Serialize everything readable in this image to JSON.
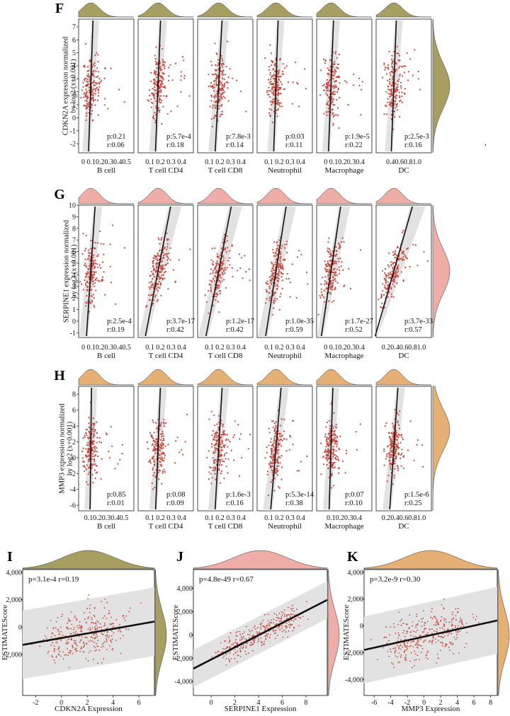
{
  "colors": {
    "F": "#8a7d2e",
    "G": "#e8928a",
    "H": "#dc9548",
    "point": "#c4463a",
    "band": "#e2e2e2",
    "line": "#111111"
  },
  "chart_data": [
    {
      "type": "scatter",
      "panel": "F",
      "ylabel_lines": [
        "CDKN2A expression normalized",
        "by log2 (x+0.001)"
      ],
      "ylim": [
        -2.7,
        7.6
      ],
      "yticks": [
        -2,
        -1,
        0,
        1,
        2,
        3,
        4,
        5,
        6,
        7
      ],
      "extra_mark": ",",
      "cells": [
        {
          "name": "B cell",
          "xticks": "0  0.10.20.30.40.5",
          "p": "p:0.21",
          "r": "r:0.06",
          "slope": 0.025
        },
        {
          "name": "T cell CD4",
          "xticks": "0.1  0.2 0.3 0.4",
          "p": "p:5.7e-4",
          "r": "r:0.18",
          "slope": 0.03
        },
        {
          "name": "T cell CD8",
          "xticks": "0.1  0.2  0.3  0.4",
          "p": "p:7.8e-3",
          "r": "r:0.14",
          "slope": 0.045
        },
        {
          "name": "Neutrophil",
          "xticks": "0.1  0.2  0.3  0.4",
          "p": "p:0.03",
          "r": "r:0.11",
          "slope": 0.025
        },
        {
          "name": "Macrophage",
          "xticks": "0 0.10.20.30.4",
          "p": "p:1.9e-5",
          "r": "r:0.22",
          "slope": 0.03
        },
        {
          "name": "DC",
          "xticks": "0.40.60.81.0",
          "p": "p:2.5e-3",
          "r": "r:0.16",
          "slope": 0.03
        }
      ]
    },
    {
      "type": "scatter",
      "panel": "G",
      "ylabel_lines": [
        "SERPINE1 expression normalized",
        "by log2 (x+0.001)"
      ],
      "ylim": [
        -1.4,
        10.0
      ],
      "yticks": [
        -1,
        0,
        1,
        2,
        3,
        4,
        5,
        6,
        7,
        8,
        9,
        10
      ],
      "cells": [
        {
          "name": "B cell",
          "xticks": "0  0.10.20.30.40.5",
          "p": "p:2.5e-4",
          "r": "r:0.19",
          "slope": 0.06
        },
        {
          "name": "T cell CD4",
          "xticks": "0.1  0.2  0.3  0.4",
          "p": "p:3.7e-17",
          "r": "r:0.42",
          "slope": 0.2
        },
        {
          "name": "T cell CD8",
          "xticks": "0.1  0.2  0.3  0.4",
          "p": "p:1.2e-17",
          "r": "r:0.42",
          "slope": 0.2
        },
        {
          "name": "Neutrophil",
          "xticks": "0.1  0.2  0.3  0.4",
          "p": "p:1.0e-35",
          "r": "r:0.59",
          "slope": 0.16
        },
        {
          "name": "Macrophage",
          "xticks": "0  0.10.20.30.4",
          "p": "p:1.7e-27",
          "r": "r:0.52",
          "slope": 0.15
        },
        {
          "name": "DC",
          "xticks": "0.20.40.60.81.0",
          "p": "p:3.7e-33",
          "r": "r:0.57",
          "slope": 0.3
        }
      ]
    },
    {
      "type": "scatter",
      "panel": "H",
      "ylabel_lines": [
        "MMP3 expression normalized",
        "by log2 (x+0.001)"
      ],
      "ylim": [
        -6.7,
        9.0
      ],
      "yticks": [
        -6,
        -4,
        -2,
        0,
        2,
        4,
        6,
        8
      ],
      "cells": [
        {
          "name": "B cell",
          "xticks": "0.10.20.30.40.5",
          "p": "p:0.85",
          "r": "r:0.01",
          "slope": 0.0
        },
        {
          "name": "T cell CD4",
          "xticks": "0.1  0.2  0.3  0.4",
          "p": "p:0.08",
          "r": "r:0.09",
          "slope": 0.03
        },
        {
          "name": "T cell CD8",
          "xticks": "0.1  0.2  0.3  0.4",
          "p": "p:1.6e-3",
          "r": "r:0.16",
          "slope": 0.05
        },
        {
          "name": "Neutrophil",
          "xticks": "0.1  0.2  0.3  0.4",
          "p": "p:5.3e-14",
          "r": "r:0.38",
          "slope": 0.08
        },
        {
          "name": "Macrophage",
          "xticks": "0.10.20.30.4",
          "p": "p:0.07",
          "r": "r:0.10",
          "slope": 0.02
        },
        {
          "name": "DC",
          "xticks": "0.20.40.60.81.0",
          "p": "p:1.5e-6",
          "r": "r:0.25",
          "slope": 0.06
        }
      ]
    },
    {
      "type": "scatter",
      "panel": "I",
      "xlabel": "CDKN2A Expression",
      "ylabel": "ESTIMATEScore",
      "xlim": [
        -3,
        7.2
      ],
      "xticks": [
        -2,
        0,
        2,
        4,
        6
      ],
      "ylim": [
        -5000,
        4200
      ],
      "yticks": [
        -2000,
        0,
        2000,
        4000
      ],
      "ytick_labels": [
        "-2,000",
        "0",
        "2,000",
        "4,000"
      ],
      "annotation": "p=3.1e-4 r=0.19",
      "fit": {
        "y_at_xmin": -1300,
        "y_at_xmax": 400
      },
      "band": 2500,
      "color_key": "F"
    },
    {
      "type": "scatter",
      "panel": "J",
      "xlabel": "SERPINE1 Expression",
      "ylabel": "ESTIMATEScore",
      "xlim": [
        -1.5,
        9.8
      ],
      "xticks": [
        0,
        2,
        4,
        6,
        8
      ],
      "ylim": [
        -5200,
        5600
      ],
      "yticks": [
        -4000,
        -2000,
        0,
        2000,
        4000
      ],
      "ytick_labels": [
        "-4,000",
        "-2,000",
        "0",
        "2,000",
        "4,000"
      ],
      "annotation": "p=4.8e-49 r=0.67",
      "fit": {
        "y_at_xmin": -2900,
        "y_at_xmax": 3000
      },
      "band": 1600,
      "color_key": "G"
    },
    {
      "type": "scatter",
      "panel": "K",
      "xlabel": "MMP3 Expression",
      "ylabel": "ESTIMATEScore",
      "xlim": [
        -7.2,
        8.8
      ],
      "xticks": [
        -6,
        -4,
        -2,
        0,
        2,
        4,
        6,
        8
      ],
      "ylim": [
        -5200,
        4200
      ],
      "yticks": [
        -4000,
        -2000,
        0,
        2000,
        4000
      ],
      "ytick_labels": [
        "-4,000",
        "-2,000",
        "0",
        "2,000",
        "4,000"
      ],
      "annotation": "p=3.2e-9 r=0.30",
      "fit": {
        "y_at_xmin": -1800,
        "y_at_xmax": 400
      },
      "band": 2500,
      "color_key": "H"
    }
  ]
}
